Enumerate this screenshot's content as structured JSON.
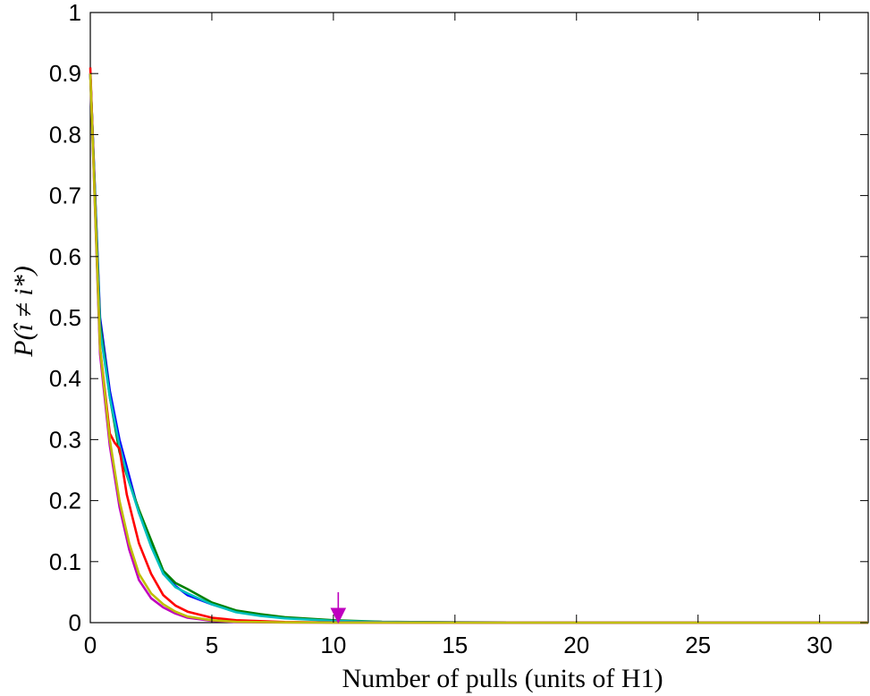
{
  "chart_data": {
    "type": "line",
    "title": "",
    "xlabel": "Number of pulls (units of H1)",
    "ylabel": "P(î ≠ i*)",
    "xlim": [
      0,
      32
    ],
    "ylim": [
      0,
      1
    ],
    "xticks": [
      "0",
      "5",
      "10",
      "15",
      "20",
      "25",
      "30"
    ],
    "yticks": [
      "0",
      "0.1",
      "0.2",
      "0.3",
      "0.4",
      "0.5",
      "0.6",
      "0.7",
      "0.8",
      "0.9",
      "1"
    ],
    "grid": false,
    "legend": "none",
    "series": [
      {
        "color": "#0000ff",
        "x": [
          0,
          0.4,
          0.8,
          1.2,
          1.6,
          2.0,
          2.5,
          3.0,
          3.5,
          4.0,
          5.0,
          6.0,
          7.0,
          8.0,
          10.0,
          12.0,
          15.0,
          20.0,
          32.0
        ],
        "y": [
          0.9,
          0.5,
          0.38,
          0.3,
          0.24,
          0.18,
          0.13,
          0.08,
          0.06,
          0.045,
          0.03,
          0.018,
          0.012,
          0.008,
          0.003,
          0.001,
          0.0005,
          0,
          0
        ]
      },
      {
        "color": "#008000",
        "x": [
          0,
          0.4,
          0.8,
          1.2,
          1.6,
          2.0,
          2.5,
          3.0,
          3.5,
          4.0,
          5.0,
          6.0,
          7.0,
          8.0,
          10.0,
          12.0,
          15.0,
          20.0,
          32.0
        ],
        "y": [
          0.9,
          0.49,
          0.37,
          0.28,
          0.23,
          0.185,
          0.135,
          0.085,
          0.065,
          0.055,
          0.033,
          0.02,
          0.014,
          0.009,
          0.004,
          0.0015,
          0.0005,
          0,
          0
        ]
      },
      {
        "color": "#00bfbf",
        "x": [
          0,
          0.4,
          0.8,
          1.2,
          1.6,
          2.0,
          2.5,
          3.0,
          3.5,
          4.0,
          5.0,
          6.0,
          7.0,
          8.0,
          10.0,
          12.0,
          15.0,
          20.0,
          32.0
        ],
        "y": [
          0.9,
          0.48,
          0.37,
          0.29,
          0.23,
          0.18,
          0.125,
          0.08,
          0.058,
          0.048,
          0.03,
          0.017,
          0.011,
          0.007,
          0.003,
          0.001,
          0.0004,
          0,
          0
        ]
      },
      {
        "color": "#ff0000",
        "x": [
          0,
          0.4,
          0.8,
          1.0,
          1.2,
          1.5,
          2.0,
          2.5,
          3.0,
          3.5,
          4.0,
          5.0,
          6.0,
          8.0,
          10.0,
          15.0,
          32.0
        ],
        "y": [
          0.91,
          0.45,
          0.31,
          0.295,
          0.285,
          0.21,
          0.13,
          0.08,
          0.045,
          0.028,
          0.018,
          0.008,
          0.004,
          0.001,
          0.0003,
          0,
          0
        ]
      },
      {
        "color": "#bf00bf",
        "x": [
          0,
          0.4,
          0.8,
          1.2,
          1.6,
          2.0,
          2.5,
          3.0,
          3.5,
          4.0,
          5.0,
          6.0,
          8.0,
          10.0,
          32.0
        ],
        "y": [
          0.9,
          0.44,
          0.29,
          0.19,
          0.12,
          0.07,
          0.04,
          0.025,
          0.015,
          0.008,
          0.003,
          0.001,
          0.0003,
          0,
          0
        ]
      },
      {
        "color": "#bfbf00",
        "x": [
          0,
          0.4,
          0.8,
          1.2,
          1.6,
          2.0,
          2.5,
          3.0,
          3.5,
          4.0,
          5.0,
          6.0,
          8.0,
          10.0,
          32.0
        ],
        "y": [
          0.9,
          0.45,
          0.3,
          0.2,
          0.13,
          0.08,
          0.048,
          0.03,
          0.018,
          0.01,
          0.004,
          0.0015,
          0.0004,
          0,
          0
        ]
      }
    ],
    "annotations": [
      {
        "type": "arrow",
        "color": "#bf00bf",
        "x": 10.2,
        "y": 0
      }
    ]
  }
}
